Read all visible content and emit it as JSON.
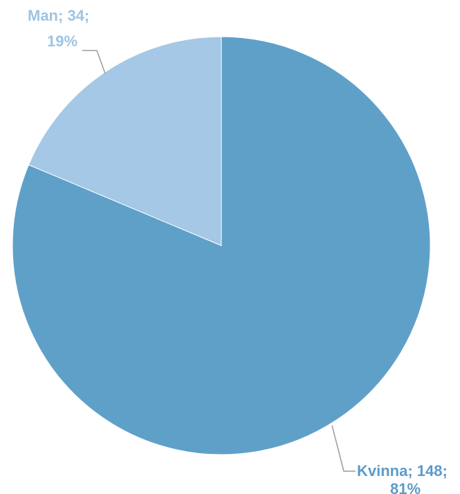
{
  "chart_data": {
    "type": "pie",
    "categories": [
      "Kvinna",
      "Man"
    ],
    "values": [
      148,
      34
    ],
    "percentages": [
      "81%",
      "19%"
    ],
    "labels": [
      {
        "line1": "Kvinna; 148;",
        "line2": "81%"
      },
      {
        "line1": "Man; 34;",
        "line2": "19%"
      }
    ],
    "colors": [
      "#5fa0c9",
      "#a4c8e5"
    ],
    "label_colors": [
      "#5b9bc8",
      "#9ec4e3"
    ],
    "start": "12 o'clock",
    "direction": "clockwise",
    "title": "",
    "legend": "none"
  }
}
